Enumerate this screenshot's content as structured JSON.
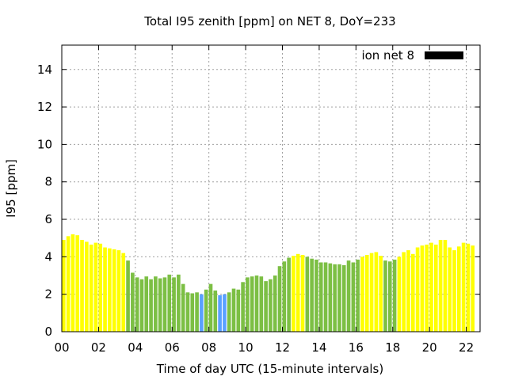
{
  "chart_data": {
    "type": "bar",
    "title": "Total I95 zenith [ppm] on NET 8, DoY=233",
    "xlabel": "Time of day UTC (15-minute intervals)",
    "ylabel": "I95 [ppm]",
    "xlim": [
      0,
      22.75
    ],
    "ylim": [
      0,
      15.3
    ],
    "x_ticks": [
      "00",
      "02",
      "04",
      "06",
      "08",
      "10",
      "12",
      "14",
      "16",
      "18",
      "20",
      "22"
    ],
    "y_ticks": [
      "0",
      "2",
      "4",
      "6",
      "8",
      "10",
      "12",
      "14"
    ],
    "legend": {
      "label": "ion net 8",
      "position": "top-right",
      "color": "#000000"
    },
    "grid": true,
    "bar_width_hours": 0.2,
    "colors": {
      "yellow": "#ffff00",
      "green": "#7cbf44",
      "blue": "#5aa0ff"
    },
    "bars": [
      {
        "x": 0.0,
        "y": 4.9,
        "c": "yellow"
      },
      {
        "x": 0.25,
        "y": 5.1,
        "c": "yellow"
      },
      {
        "x": 0.5,
        "y": 5.2,
        "c": "yellow"
      },
      {
        "x": 0.75,
        "y": 5.15,
        "c": "yellow"
      },
      {
        "x": 1.0,
        "y": 4.9,
        "c": "yellow"
      },
      {
        "x": 1.25,
        "y": 4.8,
        "c": "yellow"
      },
      {
        "x": 1.5,
        "y": 4.65,
        "c": "yellow"
      },
      {
        "x": 1.75,
        "y": 4.75,
        "c": "yellow"
      },
      {
        "x": 2.0,
        "y": 4.7,
        "c": "yellow"
      },
      {
        "x": 2.25,
        "y": 4.5,
        "c": "yellow"
      },
      {
        "x": 2.5,
        "y": 4.45,
        "c": "yellow"
      },
      {
        "x": 2.75,
        "y": 4.4,
        "c": "yellow"
      },
      {
        "x": 3.0,
        "y": 4.35,
        "c": "yellow"
      },
      {
        "x": 3.25,
        "y": 4.2,
        "c": "yellow"
      },
      {
        "x": 3.5,
        "y": 3.8,
        "c": "green"
      },
      {
        "x": 3.75,
        "y": 3.15,
        "c": "green"
      },
      {
        "x": 4.0,
        "y": 2.9,
        "c": "green"
      },
      {
        "x": 4.25,
        "y": 2.8,
        "c": "green"
      },
      {
        "x": 4.5,
        "y": 2.95,
        "c": "green"
      },
      {
        "x": 4.75,
        "y": 2.8,
        "c": "green"
      },
      {
        "x": 5.0,
        "y": 2.95,
        "c": "green"
      },
      {
        "x": 5.25,
        "y": 2.85,
        "c": "green"
      },
      {
        "x": 5.5,
        "y": 2.9,
        "c": "green"
      },
      {
        "x": 5.75,
        "y": 3.05,
        "c": "green"
      },
      {
        "x": 6.0,
        "y": 2.9,
        "c": "green"
      },
      {
        "x": 6.25,
        "y": 3.05,
        "c": "green"
      },
      {
        "x": 6.5,
        "y": 2.55,
        "c": "green"
      },
      {
        "x": 6.75,
        "y": 2.1,
        "c": "green"
      },
      {
        "x": 7.0,
        "y": 2.05,
        "c": "green"
      },
      {
        "x": 7.25,
        "y": 2.1,
        "c": "green"
      },
      {
        "x": 7.5,
        "y": 2.0,
        "c": "blue"
      },
      {
        "x": 7.75,
        "y": 2.25,
        "c": "green"
      },
      {
        "x": 8.0,
        "y": 2.55,
        "c": "green"
      },
      {
        "x": 8.25,
        "y": 2.2,
        "c": "green"
      },
      {
        "x": 8.5,
        "y": 1.95,
        "c": "blue"
      },
      {
        "x": 8.75,
        "y": 2.0,
        "c": "blue"
      },
      {
        "x": 9.0,
        "y": 2.1,
        "c": "green"
      },
      {
        "x": 9.25,
        "y": 2.3,
        "c": "green"
      },
      {
        "x": 9.5,
        "y": 2.25,
        "c": "green"
      },
      {
        "x": 9.75,
        "y": 2.65,
        "c": "green"
      },
      {
        "x": 10.0,
        "y": 2.9,
        "c": "green"
      },
      {
        "x": 10.25,
        "y": 2.95,
        "c": "green"
      },
      {
        "x": 10.5,
        "y": 3.0,
        "c": "green"
      },
      {
        "x": 10.75,
        "y": 2.95,
        "c": "green"
      },
      {
        "x": 11.0,
        "y": 2.7,
        "c": "green"
      },
      {
        "x": 11.25,
        "y": 2.8,
        "c": "green"
      },
      {
        "x": 11.5,
        "y": 3.0,
        "c": "green"
      },
      {
        "x": 11.75,
        "y": 3.5,
        "c": "green"
      },
      {
        "x": 12.0,
        "y": 3.75,
        "c": "green"
      },
      {
        "x": 12.25,
        "y": 3.95,
        "c": "green"
      },
      {
        "x": 12.5,
        "y": 4.05,
        "c": "yellow"
      },
      {
        "x": 12.75,
        "y": 4.15,
        "c": "yellow"
      },
      {
        "x": 13.0,
        "y": 4.1,
        "c": "yellow"
      },
      {
        "x": 13.25,
        "y": 4.0,
        "c": "green"
      },
      {
        "x": 13.5,
        "y": 3.9,
        "c": "green"
      },
      {
        "x": 13.75,
        "y": 3.85,
        "c": "green"
      },
      {
        "x": 14.0,
        "y": 3.7,
        "c": "green"
      },
      {
        "x": 14.25,
        "y": 3.7,
        "c": "green"
      },
      {
        "x": 14.5,
        "y": 3.65,
        "c": "green"
      },
      {
        "x": 14.75,
        "y": 3.6,
        "c": "green"
      },
      {
        "x": 15.0,
        "y": 3.6,
        "c": "green"
      },
      {
        "x": 15.25,
        "y": 3.55,
        "c": "green"
      },
      {
        "x": 15.5,
        "y": 3.8,
        "c": "green"
      },
      {
        "x": 15.75,
        "y": 3.7,
        "c": "green"
      },
      {
        "x": 16.0,
        "y": 3.85,
        "c": "green"
      },
      {
        "x": 16.25,
        "y": 4.0,
        "c": "yellow"
      },
      {
        "x": 16.5,
        "y": 4.1,
        "c": "yellow"
      },
      {
        "x": 16.75,
        "y": 4.2,
        "c": "yellow"
      },
      {
        "x": 17.0,
        "y": 4.25,
        "c": "yellow"
      },
      {
        "x": 17.25,
        "y": 4.05,
        "c": "yellow"
      },
      {
        "x": 17.5,
        "y": 3.8,
        "c": "green"
      },
      {
        "x": 17.75,
        "y": 3.75,
        "c": "green"
      },
      {
        "x": 18.0,
        "y": 3.85,
        "c": "green"
      },
      {
        "x": 18.25,
        "y": 4.0,
        "c": "yellow"
      },
      {
        "x": 18.5,
        "y": 4.25,
        "c": "yellow"
      },
      {
        "x": 18.75,
        "y": 4.35,
        "c": "yellow"
      },
      {
        "x": 19.0,
        "y": 4.15,
        "c": "yellow"
      },
      {
        "x": 19.25,
        "y": 4.5,
        "c": "yellow"
      },
      {
        "x": 19.5,
        "y": 4.6,
        "c": "yellow"
      },
      {
        "x": 19.75,
        "y": 4.65,
        "c": "yellow"
      },
      {
        "x": 20.0,
        "y": 4.75,
        "c": "yellow"
      },
      {
        "x": 20.25,
        "y": 4.65,
        "c": "yellow"
      },
      {
        "x": 20.5,
        "y": 4.9,
        "c": "yellow"
      },
      {
        "x": 20.75,
        "y": 4.9,
        "c": "yellow"
      },
      {
        "x": 21.0,
        "y": 4.5,
        "c": "yellow"
      },
      {
        "x": 21.25,
        "y": 4.35,
        "c": "yellow"
      },
      {
        "x": 21.5,
        "y": 4.55,
        "c": "yellow"
      },
      {
        "x": 21.75,
        "y": 4.75,
        "c": "yellow"
      },
      {
        "x": 22.0,
        "y": 4.7,
        "c": "yellow"
      },
      {
        "x": 22.25,
        "y": 4.6,
        "c": "yellow"
      }
    ]
  }
}
